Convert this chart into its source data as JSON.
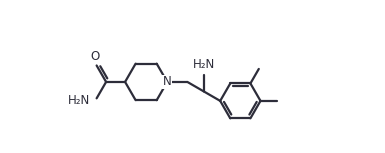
{
  "bg_color": "#ffffff",
  "bond_color": "#2d2d3a",
  "bond_width": 1.6,
  "text_color": "#2d2d3a",
  "font_size": 8.5,
  "figsize": [
    3.85,
    1.53
  ],
  "dpi": 100,
  "xlim": [
    0,
    9.5
  ],
  "ylim": [
    0,
    3.8
  ]
}
